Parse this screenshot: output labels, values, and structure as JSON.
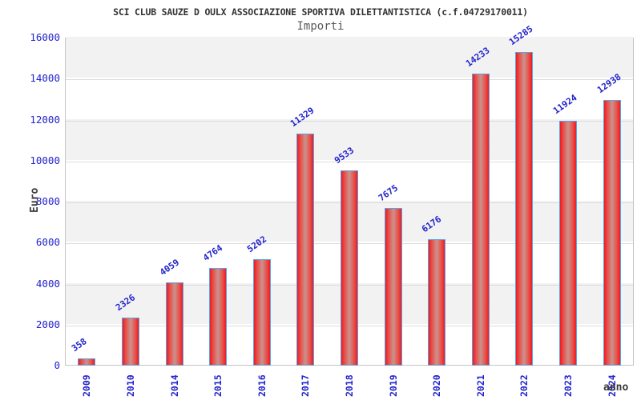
{
  "chart_data": {
    "type": "bar",
    "title": "SCI CLUB SAUZE D OULX ASSOCIAZIONE SPORTIVA DILETTANTISTICA (c.f.04729170011)",
    "subtitle": "Importi",
    "xlabel": "anno",
    "ylabel": "Euro",
    "categories": [
      "2009",
      "2010",
      "2014",
      "2015",
      "2016",
      "2017",
      "2018",
      "2019",
      "2020",
      "2021",
      "2022",
      "2023",
      "2024"
    ],
    "values": [
      358,
      2326,
      4059,
      4764,
      5202,
      11329,
      9533,
      7675,
      6176,
      14233,
      15285,
      11924,
      12938
    ],
    "value_labels": [
      "358",
      "2326",
      "4059",
      "4764",
      "5202",
      "11329",
      "9533",
      "7675",
      "6176",
      "14233",
      "15285",
      "11924",
      "12938"
    ],
    "ylim": [
      0,
      16000
    ],
    "ytick_step": 2000,
    "ytick_labels": [
      "0",
      "2000",
      "4000",
      "6000",
      "8000",
      "10000",
      "12000",
      "14000",
      "16000"
    ],
    "grid": "horizontal",
    "legend": "none",
    "banded_background": true,
    "colors": {
      "bar_edge_red": "#ee1b23",
      "bar_mid_red": "#e8534b",
      "bar_center_pale": "#c9938f",
      "bar_border_blue": "#58a4e6",
      "tick_label_blue": "#2323cc",
      "band_gray": "#f2f2f2",
      "band_white": "#ffffff",
      "grid_line": "#dcdcdc",
      "axis_label_dark": "#3a3a3a",
      "title_color": "#333333",
      "subtitle_color": "#5a5a5a"
    }
  }
}
